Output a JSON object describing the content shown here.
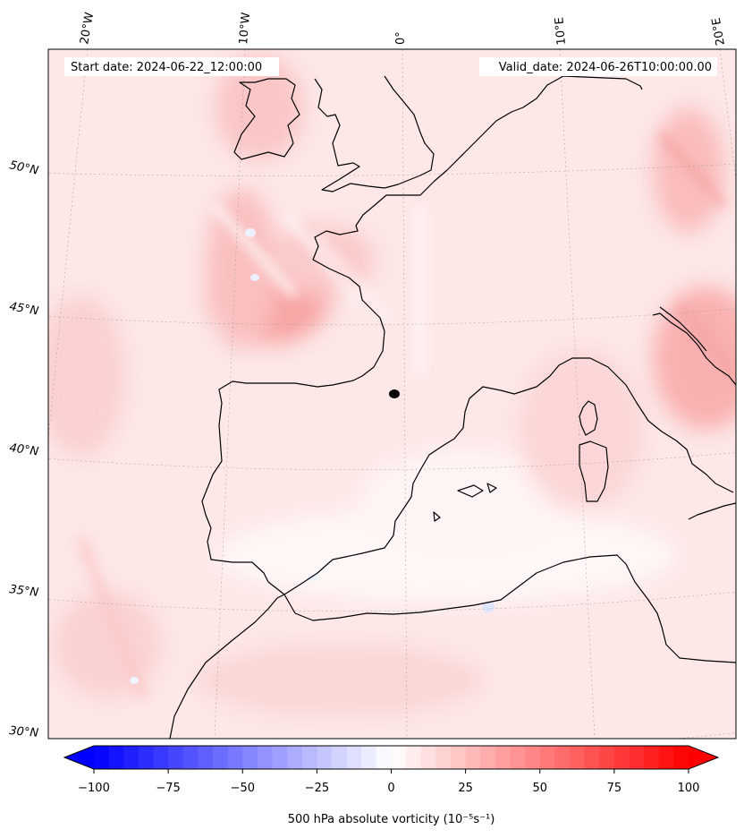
{
  "map": {
    "start_date": "Start date: 2024-06-22_12:00:00",
    "valid_date": "Valid_date: 2024-06-26T10:00:00.00",
    "lon_labels": [
      "20°W",
      "10°W",
      "0°",
      "10°E",
      "20°E"
    ],
    "lat_labels": [
      "50°N",
      "45°N",
      "40°N",
      "35°N",
      "30°N"
    ],
    "feature": "500 hPa absolute vorticity"
  },
  "colorbar": {
    "label": "500 hPa absolute vorticity (10⁻⁵s⁻¹)",
    "ticks": [
      "−100",
      "−75",
      "−50",
      "−25",
      "0",
      "25",
      "50",
      "75",
      "100"
    ],
    "vmin": -100,
    "vmax": 100,
    "levels": 40,
    "colors": {
      "low": "#0000ff",
      "mid": "#ffffff",
      "high": "#ff0000"
    }
  }
}
